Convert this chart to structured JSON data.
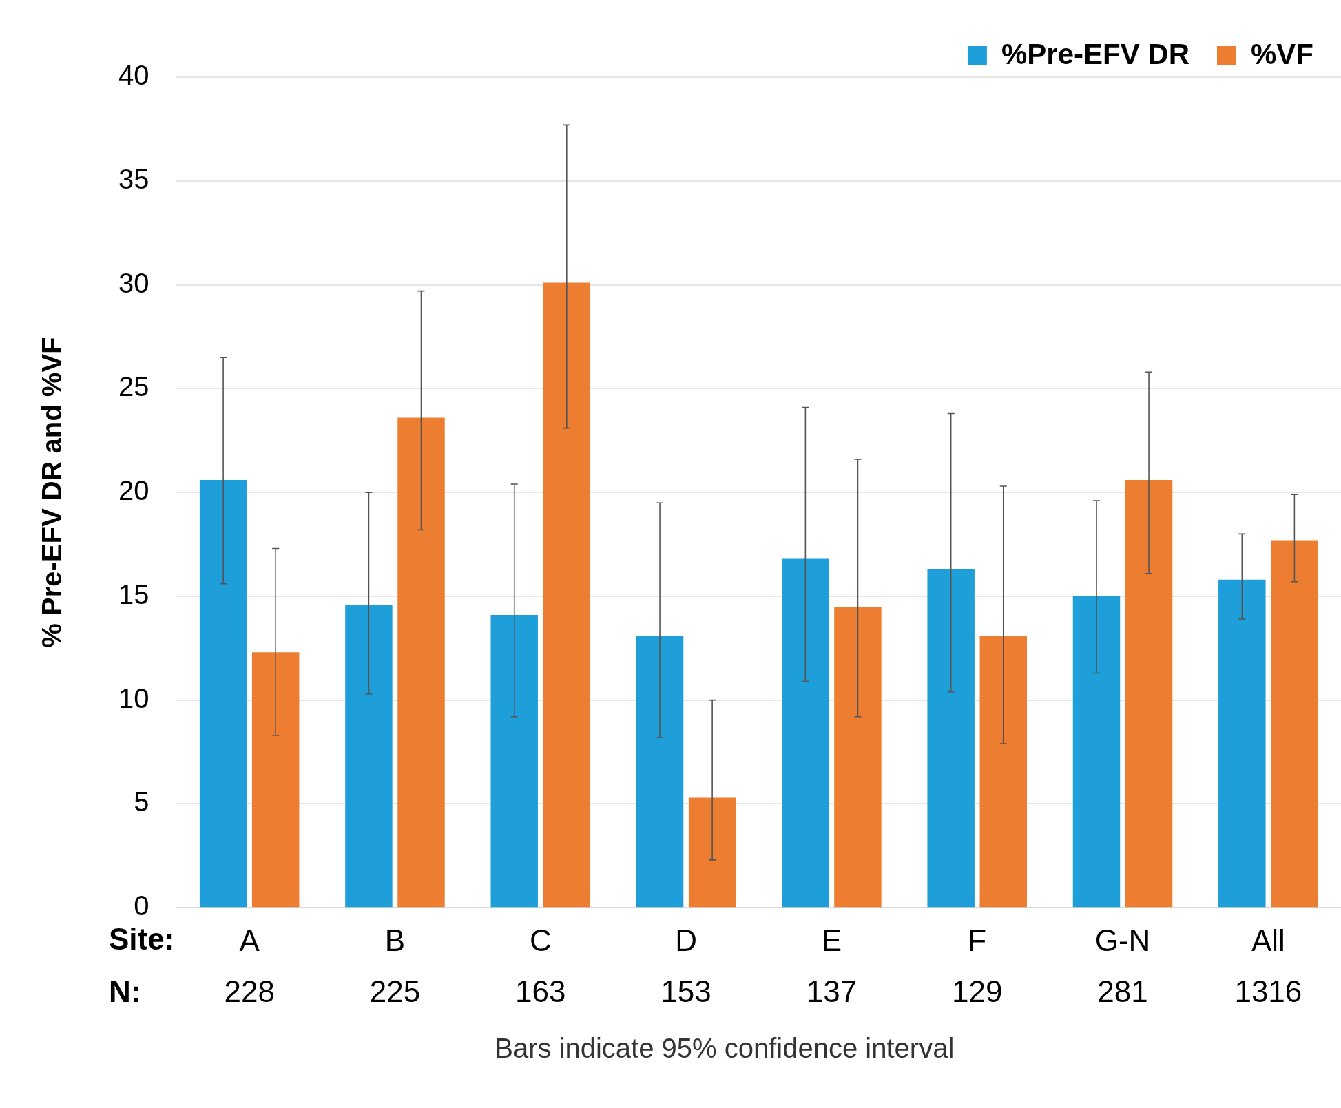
{
  "chart_data": {
    "type": "bar",
    "ylabel": "% Pre-EFV DR and %VF",
    "categories": [
      "A",
      "B",
      "C",
      "D",
      "E",
      "F",
      "G-N",
      "All"
    ],
    "series": [
      {
        "name": "%Pre-EFV DR",
        "color": "#1f9fda",
        "values": [
          20.6,
          14.6,
          14.1,
          13.1,
          16.8,
          16.3,
          15.0,
          15.8
        ],
        "errors": [
          [
            15.6,
            26.5
          ],
          [
            10.3,
            20.0
          ],
          [
            9.2,
            20.4
          ],
          [
            8.2,
            19.5
          ],
          [
            10.9,
            24.1
          ],
          [
            10.4,
            23.8
          ],
          [
            11.3,
            19.6
          ],
          [
            13.9,
            18.0
          ]
        ]
      },
      {
        "name": "%VF",
        "color": "#ed7d31",
        "values": [
          12.3,
          23.6,
          30.1,
          5.3,
          14.5,
          13.1,
          20.6,
          17.7
        ],
        "errors": [
          [
            8.3,
            17.3
          ],
          [
            18.2,
            29.7
          ],
          [
            23.1,
            37.7
          ],
          [
            2.3,
            10.0
          ],
          [
            9.2,
            21.6
          ],
          [
            7.9,
            20.3
          ],
          [
            16.1,
            25.8
          ],
          [
            15.7,
            19.9
          ]
        ]
      }
    ],
    "ylim": [
      0,
      40
    ],
    "yticks": [
      0,
      5,
      10,
      15,
      20,
      25,
      30,
      35,
      40
    ],
    "grid": "y",
    "legend": "top right",
    "annotations": [
      "Site:",
      "N:",
      "228",
      "225",
      "163",
      "153",
      "137",
      "129",
      "281",
      "1316",
      "Bars indicate 95% confidence interval"
    ]
  }
}
